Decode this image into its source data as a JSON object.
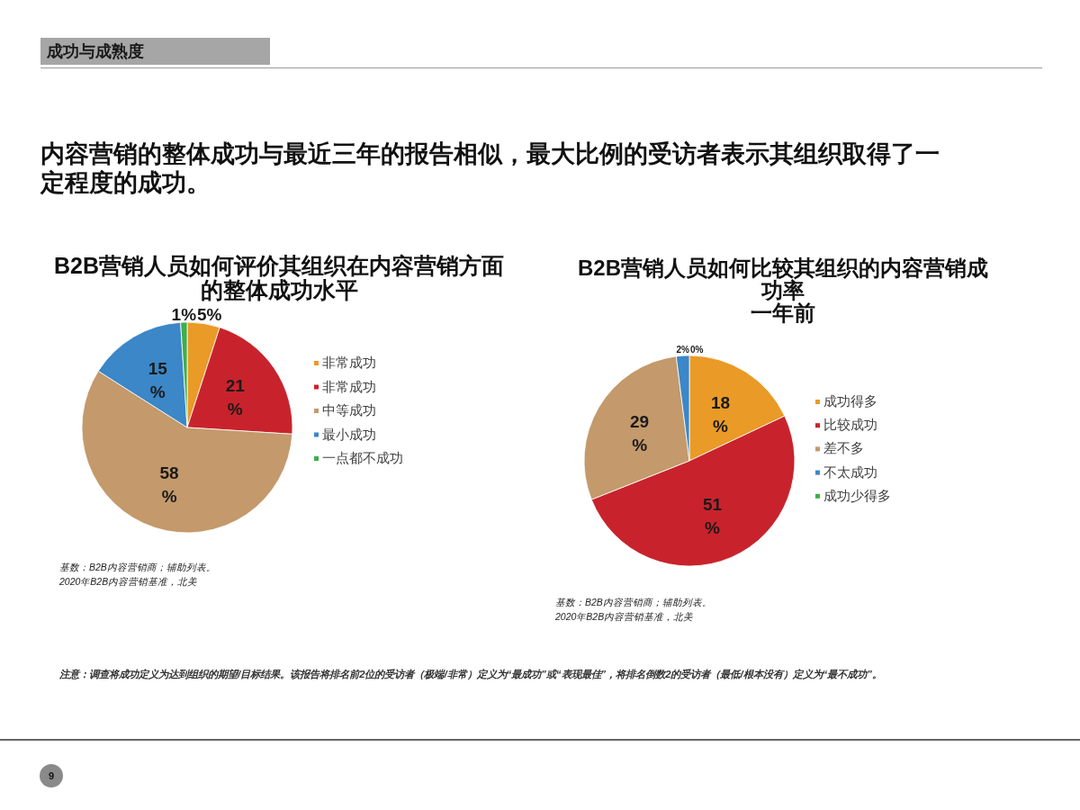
{
  "chart_data": [
    {
      "type": "other",
      "title": "内容营销的整体成功与最近三年的报告相似，最大比例的受访者表示其组织取得了一定程度的成功。",
      "annotations": [
        "成功与成熟度",
        "注意：调查将成功定义为达到组织的期望/目标结果。该报告将排名前2位的受访者（极端/非常）定义为“最成功”或“表现最佳”，将排名倒数2的受访者（最低/根本没有）定义为“最不成功”。",
        "9"
      ]
    },
    {
      "type": "pie",
      "title": "B2B营销人员如何评价其组织在内容营销方面的整体成功水平",
      "categories": [
        "非常成功",
        "非常成功",
        "中等成功",
        "最小成功",
        "一点都不成功"
      ],
      "values": [
        5,
        21,
        58,
        15,
        1
      ],
      "colors": [
        "#ea9a26",
        "#c8232c",
        "#c4996b",
        "#3b87c7",
        "#3fae4a"
      ],
      "value_labels": [
        "5%",
        "21%",
        "58%",
        "15%",
        "1%"
      ],
      "legend": "right",
      "annotations": [
        "基数：B2B内容营销商；辅助列表。",
        "2020年B2B内容营销基准，北美"
      ]
    },
    {
      "type": "pie",
      "title": "B2B营销人员如何比较其组织的内容营销成功率",
      "subtitle": "一年前",
      "categories": [
        "成功得多",
        "比较成功",
        "差不多",
        "不太成功",
        "成功少得多"
      ],
      "values": [
        18,
        51,
        29,
        2,
        0
      ],
      "colors": [
        "#ea9a26",
        "#c8232c",
        "#c4996b",
        "#3b87c7",
        "#3fae4a"
      ],
      "value_labels": [
        "18%",
        "51%",
        "29%",
        "2%",
        "0%"
      ],
      "legend": "right",
      "annotations": [
        "基数：B2B内容营销商；辅助列表。",
        "2020年B2B内容营销基准，北美"
      ]
    }
  ]
}
